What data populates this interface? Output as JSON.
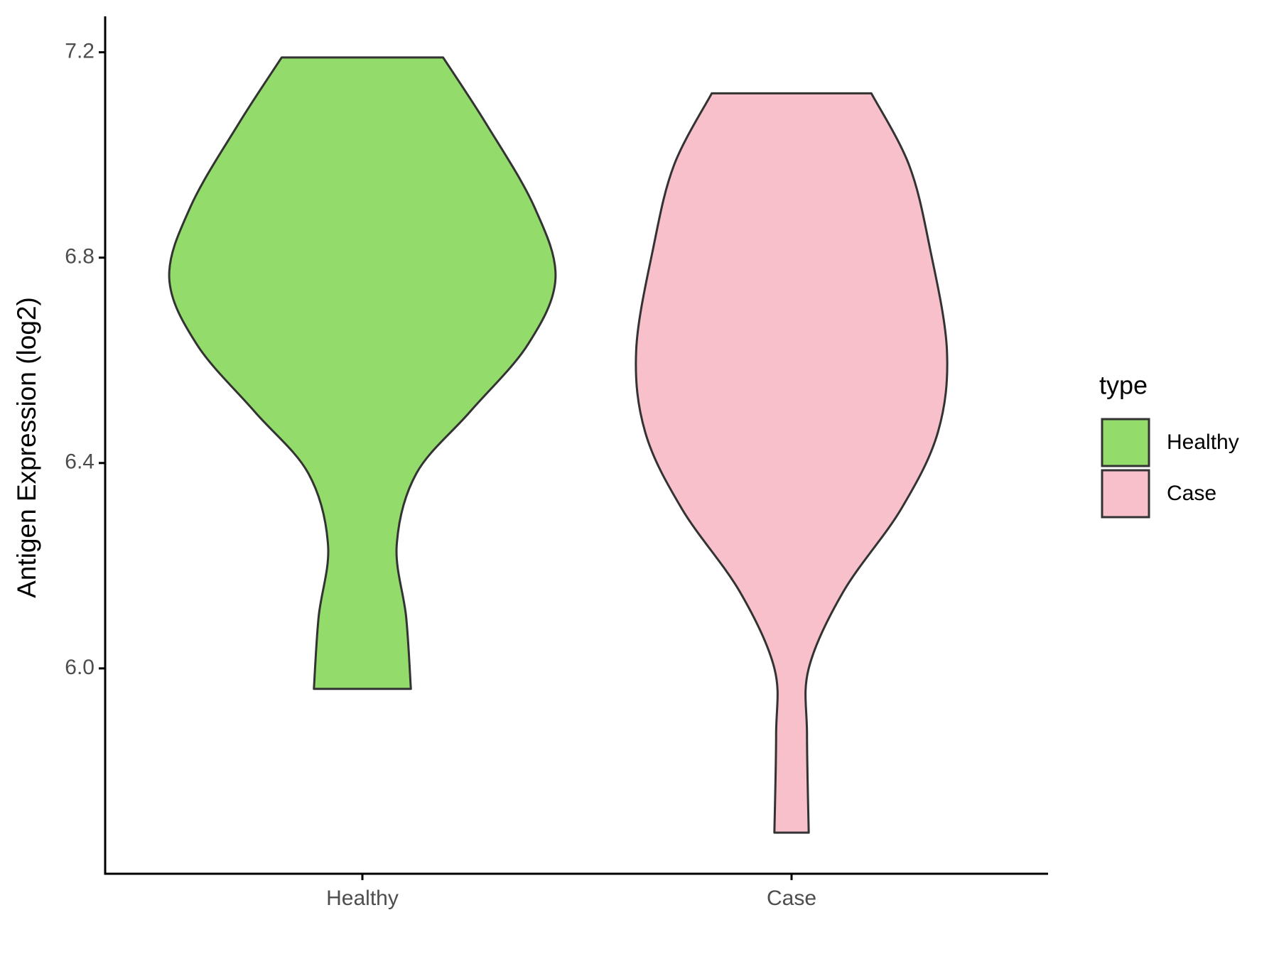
{
  "chart_data": {
    "type": "violin",
    "y_label": "Antigen Expression (log2)",
    "categories": [
      "Healthy",
      "Case"
    ],
    "legend_title": "type",
    "legend": "right",
    "ylim": [
      5.6,
      7.27
    ],
    "yticks": [
      {
        "value": 6,
        "label": "6.0"
      },
      6.4,
      6.8,
      7.2
    ],
    "series": [
      {
        "name": "Healthy",
        "color": "#93dc6b",
        "y": [
          7.19,
          7.06,
          6.9,
          6.76,
          6.63,
          6.5,
          6.38,
          6.24,
          6.1,
          5.96
        ],
        "half_width": [
          0.188,
          0.289,
          0.4,
          0.45,
          0.385,
          0.251,
          0.126,
          0.08,
          0.102,
          0.113
        ]
      },
      {
        "name": "Case",
        "color": "#f7c0cb",
        "y": [
          7.12,
          6.98,
          6.82,
          6.62,
          6.46,
          6.31,
          6.15,
          6.0,
          5.87,
          5.68
        ],
        "half_width": [
          0.186,
          0.274,
          0.322,
          0.362,
          0.341,
          0.255,
          0.121,
          0.04,
          0.036,
          0.04
        ]
      }
    ]
  }
}
